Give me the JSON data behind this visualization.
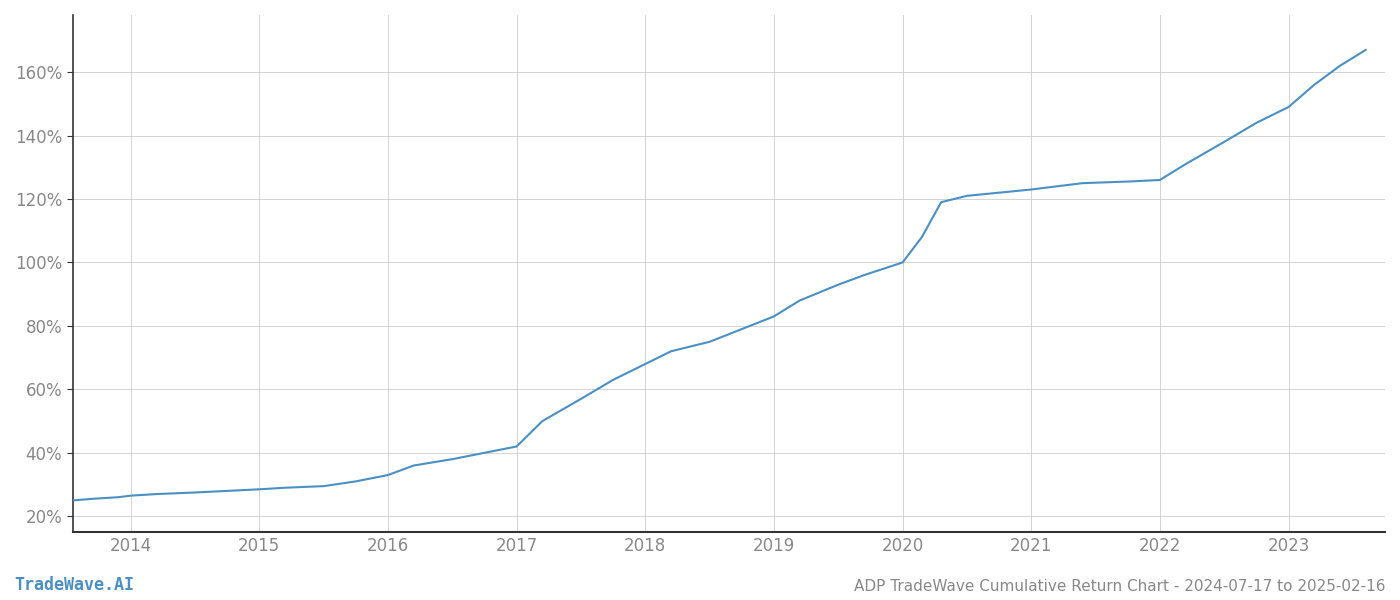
{
  "title": "ADP TradeWave Cumulative Return Chart - 2024-07-17 to 2025-02-16",
  "watermark": "TradeWave.AI",
  "line_color": "#4a90c4",
  "background_color": "#ffffff",
  "grid_color": "#cccccc",
  "axis_color": "#333333",
  "text_color": "#888888",
  "x_years": [
    2014,
    2015,
    2016,
    2017,
    2018,
    2019,
    2020,
    2021,
    2022,
    2023
  ],
  "x_values": [
    2013.55,
    2013.7,
    2013.9,
    2014.0,
    2014.2,
    2014.5,
    2014.75,
    2015.0,
    2015.2,
    2015.5,
    2015.75,
    2016.0,
    2016.2,
    2016.5,
    2016.75,
    2017.0,
    2017.2,
    2017.5,
    2017.75,
    2018.0,
    2018.2,
    2018.5,
    2018.75,
    2019.0,
    2019.2,
    2019.5,
    2019.7,
    2019.85,
    2020.0,
    2020.15,
    2020.3,
    2020.5,
    2020.75,
    2021.0,
    2021.2,
    2021.4,
    2021.75,
    2022.0,
    2022.2,
    2022.5,
    2022.75,
    2023.0,
    2023.2,
    2023.4,
    2023.6
  ],
  "y_values": [
    25,
    25.5,
    26,
    26.5,
    27,
    27.5,
    28,
    28.5,
    29,
    29.5,
    31,
    33,
    36,
    38,
    40,
    42,
    50,
    57,
    63,
    68,
    72,
    75,
    79,
    83,
    88,
    93,
    96,
    98,
    100,
    108,
    119,
    121,
    122,
    123,
    124,
    125,
    125.5,
    126,
    131,
    138,
    144,
    149,
    156,
    162,
    167
  ],
  "ylim": [
    15,
    178
  ],
  "xlim": [
    2013.55,
    2023.75
  ],
  "yticks": [
    20,
    40,
    60,
    80,
    100,
    120,
    140,
    160
  ],
  "ytick_labels": [
    "20%",
    "40%",
    "60%",
    "80%",
    "100%",
    "120%",
    "140%",
    "160%"
  ],
  "line_width": 1.5,
  "figsize": [
    14,
    6
  ],
  "dpi": 100
}
